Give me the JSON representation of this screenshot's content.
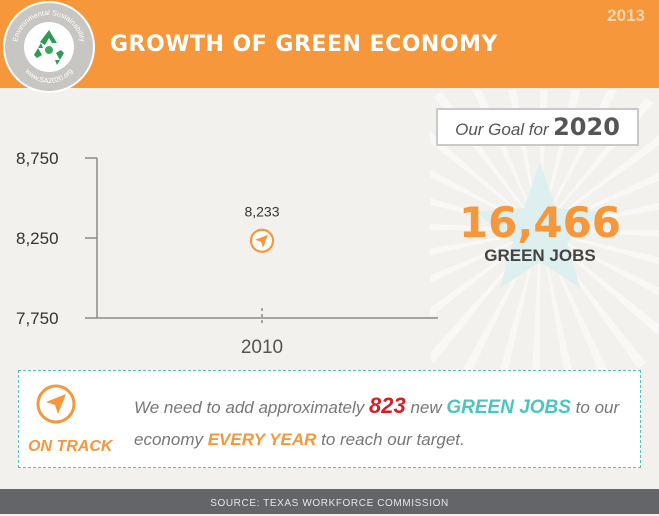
{
  "header": {
    "title": "GROWTH OF GREEN ECONOMY",
    "year": "2013",
    "seal": {
      "top_text": "Environmental Sustainability",
      "bottom_text": "www.SA2020.org",
      "icon": "recycle-icon"
    }
  },
  "goal": {
    "prefix": "Our Goal for",
    "year": "2020",
    "number": "16,466",
    "caption": "GREEN JOBS"
  },
  "chart_data": {
    "type": "scatter",
    "categories": [
      "2010"
    ],
    "x": [
      "2010"
    ],
    "values": [
      8233
    ],
    "data_labels": [
      "8,233"
    ],
    "ytick_labels": [
      "8,750",
      "8,250",
      "7,750"
    ],
    "yticks": [
      8750,
      8250,
      7750
    ],
    "ylim": [
      7750,
      8750
    ],
    "marker_icon": "compass-arrow-icon",
    "grid": false,
    "xlabel": "",
    "ylabel": "",
    "title": ""
  },
  "info": {
    "ontrack_label": "ON TRACK",
    "text_1": "We need to add approximately ",
    "number": "823",
    "text_2": " new ",
    "green_jobs": "GREEN JOBS",
    "text_3": " to our economy ",
    "every_year": "EVERY YEAR",
    "text_4": " to reach our target."
  },
  "footer": {
    "source": "SOURCE: TEXAS WORKFORCE COMMISSION"
  },
  "colors": {
    "orange": "#f5973a",
    "teal": "#4cc4c0",
    "red": "#d12127",
    "footer": "#646568"
  }
}
